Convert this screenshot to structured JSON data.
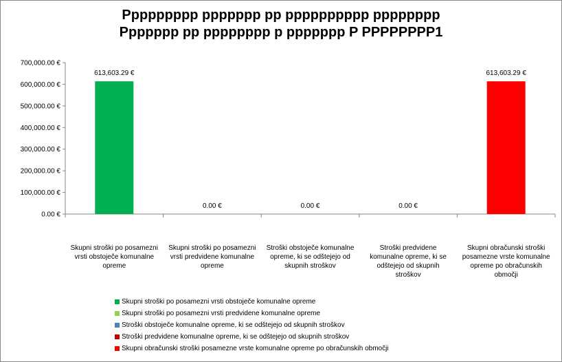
{
  "chart_data": {
    "type": "bar",
    "title": [
      "Ppppppppp ppppppp pp pppppppppp pppppppp",
      "Ppppppp pp pppppppp p ppppppp P PPPPPPPP1"
    ],
    "categories": [
      "Skupni stroški po posamezni vrsti obstoječe komunalne opreme",
      "Skupni stroški po posamezni vrsti predvidene komunalne opreme",
      "Stroški obstoječe komunalne opreme, ki se odštejejo od skupnih stroškov",
      "Stroški predvidene komunalne opreme, ki se odštejejo od skupnih stroškov",
      "Skupni obračunski stroški posamezne vrste komunalne opreme po obračunskih območji"
    ],
    "series": [
      {
        "name": "Skupni stroški po posamezni vrsti obstoječe komunalne opreme",
        "color": "#00B050"
      },
      {
        "name": "Skupni stroški po posamezni vrsti predvidene komunalne opreme",
        "color": "#92D050"
      },
      {
        "name": "Stroški obstoječe komunalne opreme, ki se odštejejo od skupnih stroškov",
        "color": "#4F81BD"
      },
      {
        "name": "Stroški predvidene komunalne opreme, ki se odštejejo od skupnih stroškov",
        "color": "#C00000"
      },
      {
        "name": "Skupni obračunski stroški posamezne vrste komunalne opreme po obračunskih območji",
        "color": "#FF0000"
      }
    ],
    "values": [
      613603.29,
      0,
      0,
      0,
      613603.29
    ],
    "value_labels": [
      "613,603.29 €",
      "0.00 €",
      "0.00 €",
      "0.00 €",
      "613,603.29 €"
    ],
    "yticks": [
      "0.00 €",
      "100,000.00 €",
      "200,000.00 €",
      "300,000.00 €",
      "400,000.00 €",
      "500,000.00 €",
      "600,000.00 €",
      "700,000.00 €"
    ],
    "ylim": [
      0,
      700000
    ],
    "grid": false,
    "legend_position": "bottom"
  }
}
